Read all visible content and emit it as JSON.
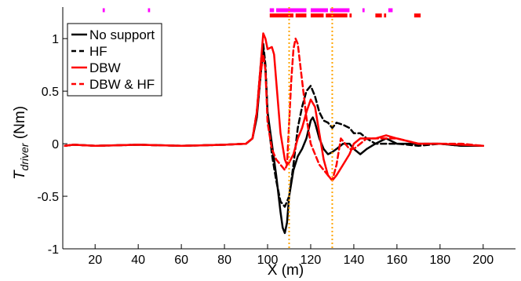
{
  "chart_data": {
    "type": "line",
    "title": "",
    "xlabel": "X (m)",
    "ylabel_main": "T",
    "ylabel_sub": "driver",
    "ylabel_unit": " (Nm)",
    "xlim": [
      5,
      215
    ],
    "ylim": [
      -1.0,
      1.3
    ],
    "x_ticks": [
      20,
      40,
      60,
      80,
      100,
      120,
      140,
      160,
      180,
      200
    ],
    "x_tick_labels": [
      "20",
      "40",
      "60",
      "80",
      "100",
      "120",
      "140",
      "160",
      "180",
      "200"
    ],
    "y_ticks": [
      -1,
      -0.5,
      0,
      0.5,
      1
    ],
    "y_tick_labels": [
      "-1",
      "-0.5",
      "0",
      "0.5",
      "1"
    ],
    "grid": false,
    "legend_position": "top-left",
    "vertical_lines": [
      110,
      130
    ],
    "vertical_line_color": "#ffa500",
    "series": [
      {
        "name": "No support",
        "color": "#000000",
        "dash": "solid",
        "points": [
          [
            6,
            -0.02
          ],
          [
            10,
            -0.01
          ],
          [
            20,
            -0.02
          ],
          [
            40,
            -0.01
          ],
          [
            60,
            -0.02
          ],
          [
            80,
            -0.01
          ],
          [
            90,
            0.0
          ],
          [
            93,
            0.05
          ],
          [
            95,
            0.25
          ],
          [
            97,
            0.7
          ],
          [
            98,
            0.9
          ],
          [
            99,
            0.7
          ],
          [
            100,
            0.3
          ],
          [
            102,
            0.0
          ],
          [
            104,
            -0.3
          ],
          [
            106,
            -0.65
          ],
          [
            107,
            -0.8
          ],
          [
            108,
            -0.85
          ],
          [
            109,
            -0.75
          ],
          [
            110,
            -0.5
          ],
          [
            112,
            -0.25
          ],
          [
            114,
            -0.12
          ],
          [
            116,
            -0.05
          ],
          [
            118,
            0.05
          ],
          [
            120,
            0.22
          ],
          [
            121,
            0.25
          ],
          [
            122,
            0.2
          ],
          [
            124,
            0.05
          ],
          [
            126,
            -0.05
          ],
          [
            128,
            -0.1
          ],
          [
            130,
            -0.08
          ],
          [
            132,
            -0.05
          ],
          [
            135,
            0.0
          ],
          [
            138,
            0.0
          ],
          [
            140,
            -0.05
          ],
          [
            143,
            -0.1
          ],
          [
            146,
            -0.05
          ],
          [
            150,
            0.0
          ],
          [
            155,
            0.05
          ],
          [
            160,
            0.0
          ],
          [
            170,
            0.0
          ],
          [
            180,
            0.0
          ],
          [
            190,
            -0.02
          ],
          [
            200,
            -0.02
          ]
        ]
      },
      {
        "name": "HF",
        "color": "#000000",
        "dash": "dashed",
        "points": [
          [
            6,
            -0.02
          ],
          [
            10,
            -0.01
          ],
          [
            20,
            -0.02
          ],
          [
            40,
            -0.01
          ],
          [
            60,
            -0.02
          ],
          [
            80,
            -0.01
          ],
          [
            90,
            0.0
          ],
          [
            93,
            0.05
          ],
          [
            95,
            0.3
          ],
          [
            97,
            0.8
          ],
          [
            98,
            0.95
          ],
          [
            99,
            0.75
          ],
          [
            100,
            0.3
          ],
          [
            102,
            -0.1
          ],
          [
            104,
            -0.35
          ],
          [
            106,
            -0.55
          ],
          [
            108,
            -0.6
          ],
          [
            110,
            -0.5
          ],
          [
            112,
            -0.2
          ],
          [
            114,
            0.15
          ],
          [
            116,
            0.35
          ],
          [
            118,
            0.5
          ],
          [
            120,
            0.55
          ],
          [
            122,
            0.45
          ],
          [
            124,
            0.3
          ],
          [
            126,
            0.22
          ],
          [
            128,
            0.2
          ],
          [
            130,
            0.15
          ],
          [
            132,
            0.2
          ],
          [
            135,
            0.18
          ],
          [
            138,
            0.15
          ],
          [
            140,
            0.1
          ],
          [
            143,
            0.1
          ],
          [
            146,
            0.05
          ],
          [
            150,
            0.0
          ],
          [
            160,
            0.0
          ],
          [
            170,
            -0.02
          ],
          [
            180,
            0.0
          ],
          [
            190,
            -0.02
          ],
          [
            200,
            -0.02
          ]
        ]
      },
      {
        "name": "DBW",
        "color": "#ff0000",
        "dash": "solid",
        "points": [
          [
            6,
            -0.02
          ],
          [
            10,
            -0.01
          ],
          [
            20,
            -0.02
          ],
          [
            40,
            -0.01
          ],
          [
            60,
            -0.02
          ],
          [
            80,
            -0.01
          ],
          [
            90,
            0.0
          ],
          [
            93,
            0.05
          ],
          [
            95,
            0.3
          ],
          [
            97,
            0.8
          ],
          [
            98,
            1.05
          ],
          [
            99,
            1.0
          ],
          [
            100,
            0.9
          ],
          [
            102,
            0.92
          ],
          [
            103,
            0.85
          ],
          [
            104,
            0.6
          ],
          [
            106,
            0.1
          ],
          [
            108,
            -0.15
          ],
          [
            109,
            -0.2
          ],
          [
            110,
            -0.18
          ],
          [
            112,
            -0.1
          ],
          [
            114,
            0.05
          ],
          [
            116,
            0.15
          ],
          [
            118,
            0.3
          ],
          [
            120,
            0.42
          ],
          [
            122,
            0.35
          ],
          [
            124,
            0.1
          ],
          [
            126,
            -0.15
          ],
          [
            128,
            -0.3
          ],
          [
            130,
            -0.35
          ],
          [
            132,
            -0.3
          ],
          [
            135,
            -0.2
          ],
          [
            138,
            -0.1
          ],
          [
            140,
            0.0
          ],
          [
            143,
            0.05
          ],
          [
            146,
            0.05
          ],
          [
            150,
            0.05
          ],
          [
            155,
            0.08
          ],
          [
            160,
            0.05
          ],
          [
            170,
            0.0
          ],
          [
            180,
            0.0
          ],
          [
            190,
            -0.01
          ],
          [
            200,
            -0.02
          ]
        ]
      },
      {
        "name": "DBW & HF",
        "color": "#ff0000",
        "dash": "dashed",
        "points": [
          [
            6,
            -0.02
          ],
          [
            10,
            -0.01
          ],
          [
            20,
            -0.02
          ],
          [
            40,
            -0.01
          ],
          [
            60,
            -0.02
          ],
          [
            80,
            -0.01
          ],
          [
            90,
            0.0
          ],
          [
            93,
            0.05
          ],
          [
            95,
            0.3
          ],
          [
            97,
            0.7
          ],
          [
            98,
            0.85
          ],
          [
            99,
            0.7
          ],
          [
            100,
            0.2
          ],
          [
            102,
            -0.05
          ],
          [
            104,
            -0.15
          ],
          [
            106,
            -0.2
          ],
          [
            108,
            -0.25
          ],
          [
            109,
            -0.2
          ],
          [
            110,
            0.2
          ],
          [
            111,
            0.6
          ],
          [
            112,
            0.9
          ],
          [
            113,
            1.0
          ],
          [
            114,
            0.95
          ],
          [
            116,
            0.6
          ],
          [
            118,
            0.25
          ],
          [
            120,
            0.0
          ],
          [
            122,
            -0.1
          ],
          [
            124,
            -0.2
          ],
          [
            126,
            -0.25
          ],
          [
            128,
            -0.3
          ],
          [
            130,
            -0.35
          ],
          [
            132,
            -0.2
          ],
          [
            134,
            0.05
          ],
          [
            136,
            0.0
          ],
          [
            138,
            -0.05
          ],
          [
            140,
            -0.05
          ],
          [
            143,
            0.0
          ],
          [
            146,
            0.05
          ],
          [
            150,
            0.05
          ],
          [
            155,
            0.05
          ],
          [
            160,
            0.05
          ],
          [
            170,
            0.0
          ],
          [
            180,
            0.0
          ],
          [
            190,
            0.0
          ],
          [
            200,
            -0.02
          ]
        ]
      }
    ],
    "marker_rows": [
      {
        "color": "#ff00ff",
        "y": 1.27,
        "segments": [
          [
            23.5,
            24.5
          ],
          [
            44.5,
            45.5
          ],
          [
            101,
            103
          ],
          [
            104,
            118
          ],
          [
            120,
            128
          ],
          [
            129,
            138
          ],
          [
            144,
            145
          ],
          [
            156,
            158
          ]
        ]
      },
      {
        "color": "#ff0000",
        "y": 1.22,
        "segments": [
          [
            101,
            112
          ],
          [
            113,
            118
          ],
          [
            120,
            126
          ],
          [
            127,
            137
          ],
          [
            138,
            139
          ],
          [
            150,
            153
          ],
          [
            154,
            155
          ],
          [
            168,
            171
          ]
        ]
      }
    ]
  }
}
